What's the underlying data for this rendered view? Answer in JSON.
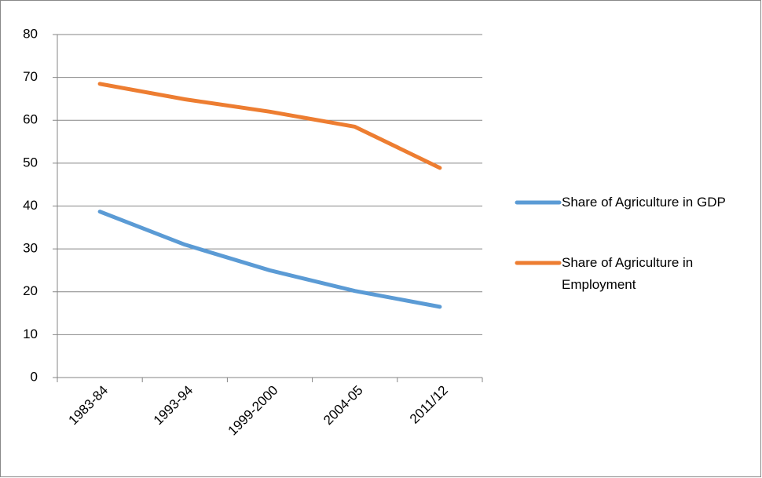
{
  "chart_data": {
    "type": "line",
    "categories": [
      "1983-84",
      "1993-94",
      "1999-2000",
      "2004-05",
      "2011/12"
    ],
    "series": [
      {
        "name": "Share of Agriculture in GDP",
        "color": "#5b9bd5",
        "values": [
          38.7,
          31,
          25,
          20.2,
          16.5
        ]
      },
      {
        "name": "Share of Agriculture in Employment",
        "color": "#ed7d31",
        "values": [
          68.5,
          64.9,
          62,
          58.5,
          48.9
        ]
      }
    ],
    "ylim": [
      0,
      80
    ],
    "yticks": [
      0,
      10,
      20,
      30,
      40,
      50,
      60,
      70,
      80
    ],
    "grid": true,
    "legend": "right"
  }
}
